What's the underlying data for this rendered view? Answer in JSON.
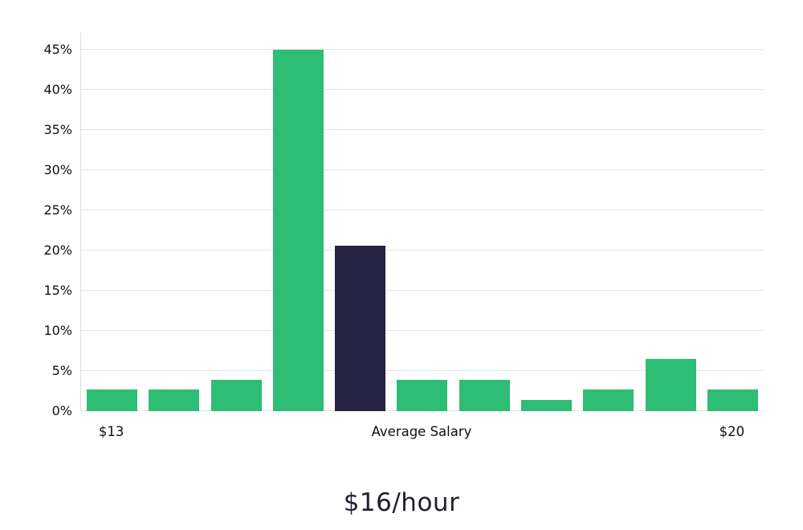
{
  "chart_data": {
    "type": "bar",
    "title": "$16/hour",
    "values": [
      2.7,
      2.7,
      3.9,
      45,
      20.6,
      3.9,
      3.9,
      1.4,
      2.7,
      6.5,
      2.7
    ],
    "highlight_index": 4,
    "bar_color": "#2ebd74",
    "highlight_color": "#252243",
    "y_tick_values": [
      0,
      5,
      10,
      15,
      20,
      25,
      30,
      35,
      40,
      45
    ],
    "y_tick_labels": [
      "0%",
      "5%",
      "10%",
      "15%",
      "20%",
      "25%",
      "30%",
      "35%",
      "40%",
      "45%"
    ],
    "ylim": [
      0,
      47.2
    ],
    "x_labels": [
      {
        "text": "$13",
        "anchor": "first-bar"
      },
      {
        "text": "Average Salary",
        "anchor": "center"
      },
      {
        "text": "$20",
        "anchor": "last-bar"
      }
    ],
    "grid": true,
    "legend_position": "none",
    "xlabel": "",
    "ylabel": ""
  },
  "colors": {
    "background": "#ffffff",
    "gridline": "#e3e3e3",
    "axis_spine": "#dddddd",
    "tick_text": "#111111",
    "title_text": "#20202e"
  }
}
